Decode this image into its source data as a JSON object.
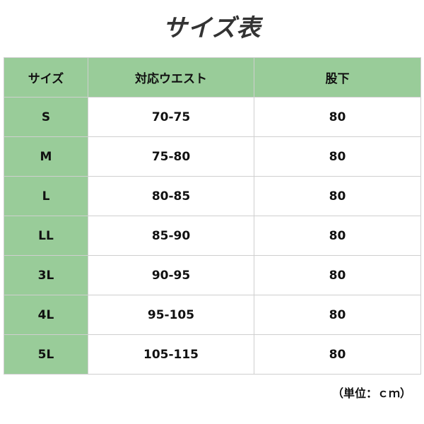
{
  "title": "サイズ表",
  "header": [
    "サイズ",
    "対応ウエスト",
    "股下"
  ],
  "rows": [
    [
      "S",
      "70-75",
      "80"
    ],
    [
      "M",
      "75-80",
      "80"
    ],
    [
      "L",
      "80-85",
      "80"
    ],
    [
      "LL",
      "85-90",
      "80"
    ],
    [
      "3L",
      "90-95",
      "80"
    ],
    [
      "4L",
      "95-105",
      "80"
    ],
    [
      "5L",
      "105-115",
      "80"
    ]
  ],
  "unit_note": "（単位：ｃｍ）",
  "colors": {
    "header_bg": "#99cc99",
    "border": "#cfcfcf"
  }
}
